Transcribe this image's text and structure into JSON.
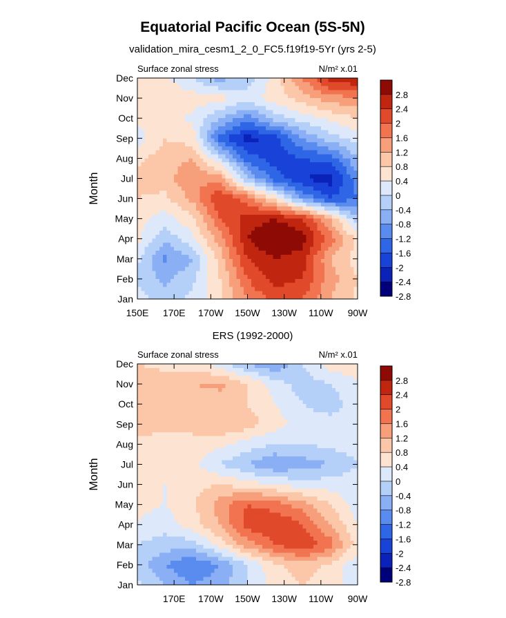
{
  "figure": {
    "title": "Equatorial Pacific Ocean (5S-5N)"
  },
  "colors": {
    "scale": [
      "#00007a",
      "#0b22b8",
      "#1842d8",
      "#2f66e6",
      "#5a8cef",
      "#8aaff4",
      "#b4cff8",
      "#dde9fb",
      "#fde4d2",
      "#fbc7a8",
      "#f79e7b",
      "#f1734f",
      "#e04a2a",
      "#c0260f",
      "#8e0a04"
    ]
  },
  "chart_data": [
    {
      "type": "heatmap",
      "title": "validation_mira_cesm1_2_0_FC5.f19f19-5Yr (yrs 2-5)",
      "left_label": "Surface zonal stress",
      "right_label": "N/m² x.01",
      "ylabel": "Month",
      "xlabel": "",
      "xlim": [
        150,
        270
      ],
      "x_ticks": [
        {
          "value": 150,
          "label": "150E"
        },
        {
          "value": 170,
          "label": "170E"
        },
        {
          "value": 190,
          "label": "170W"
        },
        {
          "value": 210,
          "label": "150W"
        },
        {
          "value": 230,
          "label": "130W"
        },
        {
          "value": 250,
          "label": "110W"
        },
        {
          "value": 270,
          "label": "90W"
        }
      ],
      "y_ticks": [
        "Jan",
        "Feb",
        "Mar",
        "Apr",
        "May",
        "Jun",
        "Jul",
        "Aug",
        "Sep",
        "Oct",
        "Nov",
        "Dec"
      ],
      "colorbar_levels": [
        "2.8",
        "2.4",
        "2",
        "1.6",
        "1.2",
        "0.8",
        "0.4",
        "0",
        "-0.4",
        "-0.8",
        "-1.2",
        "-1.6",
        "-2",
        "-2.4",
        "-2.8"
      ],
      "grid_x": [
        150,
        165,
        180,
        195,
        210,
        225,
        240,
        255,
        270
      ],
      "values": [
        [
          -0.2,
          -0.6,
          -0.3,
          0.3,
          1.2,
          1.8,
          1.6,
          0.8,
          0.3
        ],
        [
          -0.5,
          -0.9,
          -0.5,
          0.4,
          1.6,
          2.2,
          2.0,
          1.0,
          0.4
        ],
        [
          -0.3,
          -1.3,
          -0.8,
          0.6,
          2.0,
          2.4,
          2.2,
          0.8,
          0.2
        ],
        [
          0.1,
          -0.7,
          -0.1,
          1.0,
          2.4,
          2.9,
          2.6,
          1.4,
          0.3
        ],
        [
          0.2,
          -0.2,
          0.3,
          1.6,
          2.2,
          2.4,
          2.0,
          0.8,
          -0.8
        ],
        [
          0.4,
          0.3,
          0.9,
          2.0,
          1.4,
          0.2,
          -1.2,
          -2.0,
          -1.6
        ],
        [
          0.5,
          0.6,
          1.2,
          1.0,
          -0.8,
          -1.8,
          -2.4,
          -2.6,
          -1.4
        ],
        [
          0.3,
          0.6,
          0.8,
          -0.4,
          -1.8,
          -2.2,
          -2.0,
          -1.8,
          -0.8
        ],
        [
          -0.2,
          0.4,
          0.2,
          -1.8,
          -2.6,
          -2.2,
          -1.2,
          -0.6,
          -0.2
        ],
        [
          0.1,
          0.2,
          -0.1,
          -0.8,
          -1.4,
          -0.6,
          -0.2,
          0.1,
          0.4
        ],
        [
          0.3,
          0.3,
          0.2,
          0.2,
          -0.2,
          0.2,
          0.6,
          1.0,
          1.2
        ],
        [
          0.2,
          0.1,
          -0.4,
          -1.0,
          -0.6,
          0.2,
          1.2,
          2.2,
          2.4
        ]
      ]
    },
    {
      "type": "heatmap",
      "title": "ERS (1992-2000)",
      "left_label": "Surface zonal stress",
      "right_label": "N/m² x.01",
      "ylabel": "Month",
      "xlabel": "",
      "xlim": [
        150,
        270
      ],
      "x_ticks": [
        {
          "value": 170,
          "label": "170E"
        },
        {
          "value": 190,
          "label": "170W"
        },
        {
          "value": 210,
          "label": "150W"
        },
        {
          "value": 230,
          "label": "130W"
        },
        {
          "value": 250,
          "label": "110W"
        },
        {
          "value": 270,
          "label": "90W"
        }
      ],
      "y_ticks": [
        "Jan",
        "Feb",
        "Mar",
        "Apr",
        "May",
        "Jun",
        "Jul",
        "Aug",
        "Sep",
        "Oct",
        "Nov",
        "Dec"
      ],
      "colorbar_levels": [
        "2.8",
        "2.4",
        "2",
        "1.6",
        "1.2",
        "0.8",
        "0.4",
        "0",
        "-0.4",
        "-0.8",
        "-1.2",
        "-1.6",
        "-2",
        "-2.4",
        "-2.8"
      ],
      "grid_x": [
        150,
        165,
        180,
        195,
        210,
        225,
        240,
        255,
        270
      ],
      "values": [
        [
          -0.3,
          -0.8,
          -1.2,
          -1.0,
          -0.4,
          0.2,
          0.4,
          0.2,
          -0.2
        ],
        [
          -0.6,
          -1.2,
          -1.6,
          -1.2,
          -0.4,
          0.3,
          0.6,
          0.3,
          -0.3
        ],
        [
          -0.4,
          -0.6,
          -0.6,
          0.2,
          1.0,
          1.6,
          2.0,
          1.4,
          0.2
        ],
        [
          0.0,
          -0.2,
          0.2,
          0.8,
          1.8,
          2.0,
          1.6,
          0.8,
          0.0
        ],
        [
          0.1,
          0.0,
          0.3,
          1.0,
          1.6,
          1.4,
          1.0,
          0.4,
          -0.2
        ],
        [
          0.2,
          0.0,
          0.3,
          0.4,
          0.2,
          0.0,
          -0.2,
          -0.2,
          -0.2
        ],
        [
          0.1,
          0.1,
          0.1,
          -0.4,
          -0.8,
          -1.2,
          -1.0,
          -0.8,
          -0.4
        ],
        [
          0.3,
          0.2,
          0.2,
          0.1,
          -0.2,
          -0.4,
          -0.4,
          -0.3,
          -0.2
        ],
        [
          0.6,
          0.5,
          0.6,
          0.8,
          0.6,
          0.2,
          -0.2,
          -0.2,
          -0.2
        ],
        [
          0.7,
          0.6,
          0.5,
          0.6,
          0.4,
          0.0,
          -0.4,
          -0.6,
          -0.2
        ],
        [
          0.6,
          0.6,
          0.8,
          0.9,
          0.4,
          -0.2,
          -0.6,
          -0.4,
          -0.1
        ],
        [
          0.4,
          0.3,
          0.2,
          -0.2,
          -0.8,
          -1.2,
          -0.4,
          0.2,
          0.3
        ]
      ]
    }
  ]
}
